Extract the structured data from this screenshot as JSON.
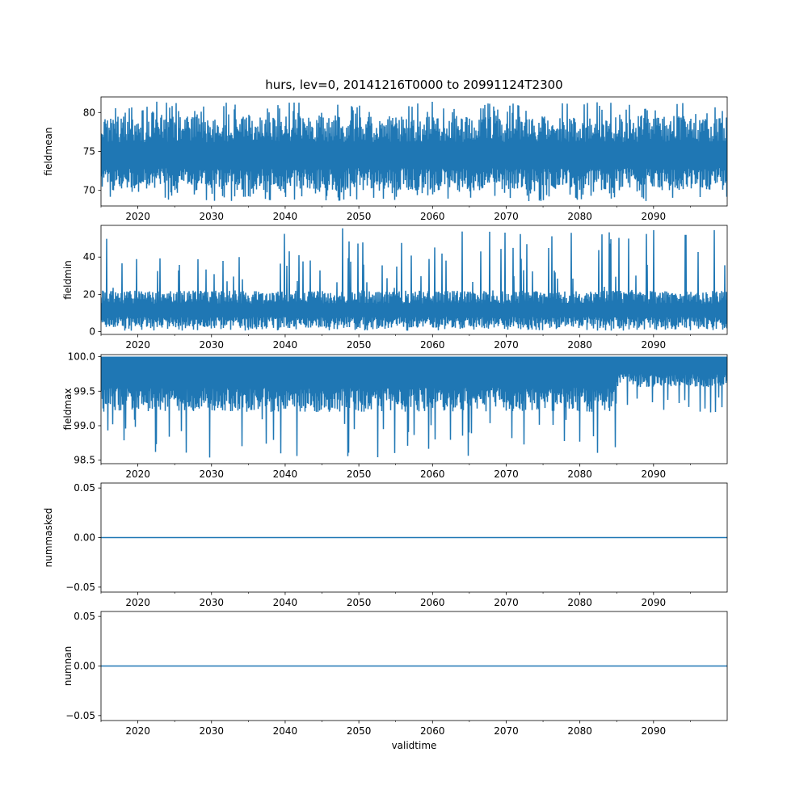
{
  "chart_data": {
    "type": "line",
    "title": "hurs, lev=0, 20141216T0000 to 20991124T2300",
    "xlabel": "validtime",
    "xlim": [
      2015,
      2100
    ],
    "x_ticks": [
      "2020",
      "2030",
      "2040",
      "2050",
      "2060",
      "2070",
      "2080",
      "2090"
    ],
    "line_color": "#1f77b4",
    "grid": false,
    "panels": [
      {
        "ylabel": "fieldmean",
        "ylim": [
          68.0,
          82.0
        ],
        "y_ticks": [
          "70",
          "75",
          "80"
        ],
        "y_tick_values": [
          70,
          75,
          80
        ],
        "series_band": {
          "low": 70.0,
          "high": 79.5,
          "peak_low": 68.6,
          "peak_high": 81.4
        }
      },
      {
        "ylabel": "fieldmin",
        "ylim": [
          -1.5,
          57.0
        ],
        "y_ticks": [
          "0",
          "20",
          "40"
        ],
        "y_tick_values": [
          0,
          20,
          40
        ],
        "series_band": {
          "low": 2.0,
          "high": 22.0,
          "peak_low": 0.5,
          "peak_high": 55.5
        }
      },
      {
        "ylabel": "fieldmax",
        "ylim": [
          98.45,
          100.03
        ],
        "y_ticks": [
          "98.5",
          "99.0",
          "99.5",
          "100.0"
        ],
        "y_tick_values": [
          98.5,
          99.0,
          99.5,
          100.0
        ],
        "series_band": {
          "low": 99.35,
          "high": 100.0,
          "peak_low": 98.52,
          "peak_high": 100.0
        }
      },
      {
        "ylabel": "nummasked",
        "ylim": [
          -0.055,
          0.055
        ],
        "y_ticks": [
          "0.05",
          "0.00",
          "−0.05"
        ],
        "y_tick_values": [
          0.05,
          0.0,
          -0.05
        ],
        "constant_value": 0.0
      },
      {
        "ylabel": "numnan",
        "ylim": [
          -0.055,
          0.055
        ],
        "y_ticks": [
          "0.05",
          "0.00",
          "−0.05"
        ],
        "y_tick_values": [
          0.05,
          0.0,
          -0.05
        ],
        "constant_value": 0.0
      }
    ]
  }
}
